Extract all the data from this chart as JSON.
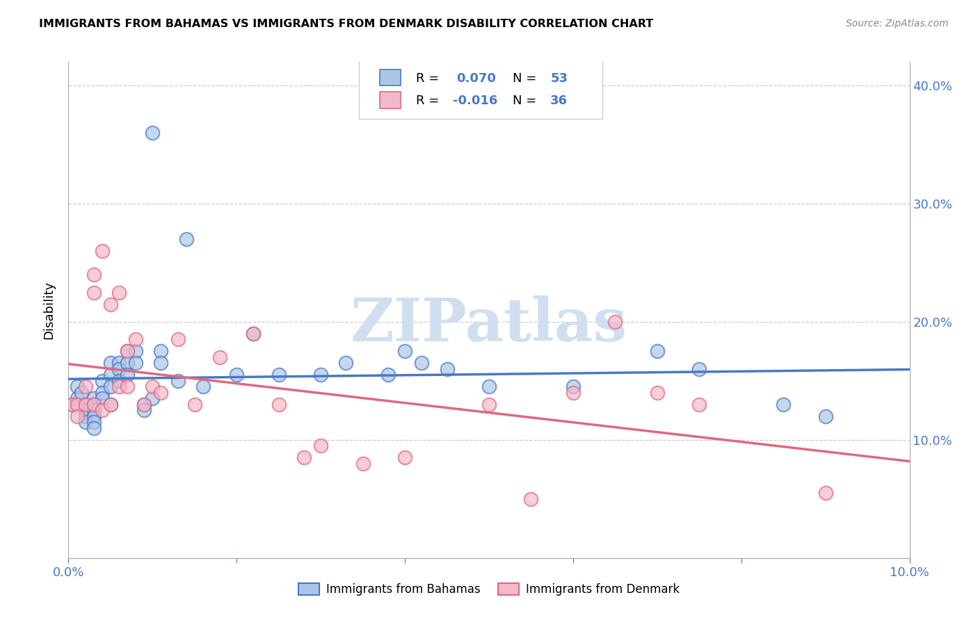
{
  "title": "IMMIGRANTS FROM BAHAMAS VS IMMIGRANTS FROM DENMARK DISABILITY CORRELATION CHART",
  "source": "Source: ZipAtlas.com",
  "ylabel": "Disability",
  "xlim": [
    0.0,
    0.1
  ],
  "ylim": [
    0.0,
    0.42
  ],
  "color_bahamas": "#adc6e8",
  "color_denmark": "#f5b8c8",
  "line_color_bahamas": "#4878c8",
  "line_color_denmark": "#e06880",
  "text_blue": "#4878c8",
  "watermark_color": "#d0dff0",
  "grid_color": "#cccccc",
  "bahamas_x": [
    0.0005,
    0.001,
    0.001,
    0.0015,
    0.002,
    0.002,
    0.002,
    0.002,
    0.003,
    0.003,
    0.003,
    0.003,
    0.003,
    0.003,
    0.004,
    0.004,
    0.004,
    0.005,
    0.005,
    0.005,
    0.005,
    0.006,
    0.006,
    0.006,
    0.007,
    0.007,
    0.007,
    0.008,
    0.008,
    0.009,
    0.009,
    0.01,
    0.01,
    0.011,
    0.011,
    0.013,
    0.014,
    0.016,
    0.02,
    0.022,
    0.025,
    0.03,
    0.033,
    0.038,
    0.04,
    0.042,
    0.045,
    0.05,
    0.06,
    0.07,
    0.075,
    0.085,
    0.09
  ],
  "bahamas_y": [
    0.13,
    0.145,
    0.135,
    0.14,
    0.13,
    0.125,
    0.12,
    0.115,
    0.135,
    0.13,
    0.125,
    0.12,
    0.115,
    0.11,
    0.15,
    0.14,
    0.135,
    0.165,
    0.155,
    0.145,
    0.13,
    0.165,
    0.16,
    0.15,
    0.175,
    0.165,
    0.155,
    0.175,
    0.165,
    0.13,
    0.125,
    0.36,
    0.135,
    0.175,
    0.165,
    0.15,
    0.27,
    0.145,
    0.155,
    0.19,
    0.155,
    0.155,
    0.165,
    0.155,
    0.175,
    0.165,
    0.16,
    0.145,
    0.145,
    0.175,
    0.16,
    0.13,
    0.12
  ],
  "denmark_x": [
    0.0005,
    0.001,
    0.001,
    0.002,
    0.002,
    0.003,
    0.003,
    0.003,
    0.004,
    0.004,
    0.005,
    0.005,
    0.006,
    0.006,
    0.007,
    0.007,
    0.008,
    0.009,
    0.01,
    0.011,
    0.013,
    0.015,
    0.018,
    0.022,
    0.025,
    0.028,
    0.03,
    0.035,
    0.04,
    0.05,
    0.055,
    0.06,
    0.065,
    0.07,
    0.075,
    0.09
  ],
  "denmark_y": [
    0.13,
    0.13,
    0.12,
    0.145,
    0.13,
    0.24,
    0.225,
    0.13,
    0.26,
    0.125,
    0.215,
    0.13,
    0.225,
    0.145,
    0.175,
    0.145,
    0.185,
    0.13,
    0.145,
    0.14,
    0.185,
    0.13,
    0.17,
    0.19,
    0.13,
    0.085,
    0.095,
    0.08,
    0.085,
    0.13,
    0.05,
    0.14,
    0.2,
    0.14,
    0.13,
    0.055
  ]
}
